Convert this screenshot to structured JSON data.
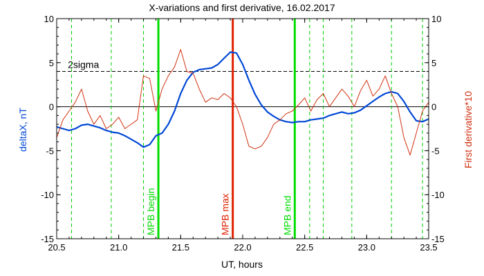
{
  "chart_data": {
    "type": "line",
    "title": "X-variations and first derivative, 16.02.2017",
    "xlabel": "UT, hours",
    "ylabel_left": "deltaX, nT",
    "ylabel_right": "First derivative*10",
    "xlim": [
      20.5,
      23.5
    ],
    "ylim_left": [
      -15,
      10
    ],
    "ylim_right": [
      -15,
      10
    ],
    "x_ticks": [
      20.5,
      21.0,
      21.5,
      22.0,
      22.5,
      23.0,
      23.5
    ],
    "x_tick_labels": [
      "20.5",
      "21.0",
      "21.5",
      "22.0",
      "22.5",
      "23.0",
      "23.5"
    ],
    "y_ticks": [
      10,
      5,
      0,
      -5,
      -10,
      -15
    ],
    "y_tick_labels": [
      "10",
      "5",
      "0",
      "-5",
      "-10",
      "-15"
    ],
    "grid": false,
    "threshold": {
      "label": "2sigma",
      "value": 4.0
    },
    "series": [
      {
        "key": "deltaX",
        "color": "#0047d6",
        "x": [
          20.5,
          20.55,
          20.6,
          20.65,
          20.7,
          20.75,
          20.8,
          20.85,
          20.9,
          20.95,
          21.0,
          21.05,
          21.1,
          21.15,
          21.2,
          21.25,
          21.3,
          21.35,
          21.4,
          21.45,
          21.5,
          21.55,
          21.6,
          21.65,
          21.7,
          21.75,
          21.8,
          21.85,
          21.9,
          21.95,
          22.0,
          22.05,
          22.1,
          22.15,
          22.2,
          22.25,
          22.3,
          22.35,
          22.4,
          22.45,
          22.5,
          22.55,
          22.6,
          22.65,
          22.7,
          22.75,
          22.8,
          22.85,
          22.9,
          22.95,
          23.0,
          23.05,
          23.1,
          23.15,
          23.2,
          23.25,
          23.3,
          23.35,
          23.4,
          23.45,
          23.5
        ],
        "y": [
          -2.3,
          -2.5,
          -2.7,
          -2.5,
          -2.1,
          -2.0,
          -2.2,
          -2.4,
          -2.7,
          -2.9,
          -3.0,
          -3.3,
          -3.7,
          -4.1,
          -4.6,
          -4.3,
          -3.3,
          -3.0,
          -2.0,
          -0.5,
          1.5,
          3.0,
          3.9,
          4.2,
          4.3,
          4.4,
          4.8,
          5.5,
          6.2,
          6.1,
          4.8,
          3.0,
          1.4,
          0.2,
          -0.6,
          -1.1,
          -1.5,
          -1.7,
          -1.8,
          -1.7,
          -1.7,
          -1.5,
          -1.4,
          -1.3,
          -1.0,
          -0.8,
          -0.6,
          -0.8,
          -0.7,
          -0.4,
          0.1,
          0.6,
          1.1,
          1.5,
          1.7,
          1.5,
          0.6,
          -0.6,
          -1.6,
          -1.7,
          -1.4
        ]
      },
      {
        "key": "derivative",
        "color": "#d03010",
        "x": [
          20.5,
          20.55,
          20.6,
          20.65,
          20.7,
          20.75,
          20.8,
          20.85,
          20.9,
          20.95,
          21.0,
          21.05,
          21.1,
          21.15,
          21.2,
          21.25,
          21.3,
          21.35,
          21.4,
          21.45,
          21.5,
          21.55,
          21.6,
          21.65,
          21.7,
          21.75,
          21.8,
          21.85,
          21.9,
          21.95,
          22.0,
          22.05,
          22.1,
          22.15,
          22.2,
          22.25,
          22.3,
          22.35,
          22.4,
          22.45,
          22.5,
          22.55,
          22.6,
          22.65,
          22.7,
          22.75,
          22.8,
          22.85,
          22.9,
          22.95,
          23.0,
          23.05,
          23.1,
          23.15,
          23.2,
          23.25,
          23.3,
          23.35,
          23.4,
          23.45,
          23.5
        ],
        "y": [
          -3.5,
          -1.5,
          -0.5,
          0.5,
          2.0,
          -0.5,
          -2.0,
          -1.0,
          -2.5,
          -2.0,
          -1.2,
          -2.5,
          -2.0,
          -1.5,
          3.5,
          3.2,
          -0.5,
          2.0,
          3.5,
          4.5,
          6.5,
          4.0,
          3.8,
          2.0,
          0.5,
          1.0,
          0.8,
          1.5,
          1.0,
          0.0,
          -2.0,
          -4.5,
          -4.8,
          -4.5,
          -3.5,
          -2.0,
          -1.5,
          -0.8,
          -0.5,
          0.2,
          1.0,
          -0.5,
          0.8,
          1.5,
          0.0,
          1.0,
          2.0,
          1.2,
          0.0,
          1.8,
          3.0,
          1.2,
          2.0,
          3.5,
          1.5,
          0.0,
          -3.5,
          -5.5,
          -3.0,
          -0.5,
          0.5
        ]
      }
    ],
    "vertical_markers": {
      "dashed_green": [
        20.62,
        20.94,
        21.2,
        22.54,
        22.65,
        22.88,
        23.2,
        23.45
      ],
      "solid": [
        {
          "x": 21.32,
          "label": "MPB begin",
          "color": "#00dd00"
        },
        {
          "x": 21.92,
          "label": "MPB max",
          "color": "#e02000"
        },
        {
          "x": 22.42,
          "label": "MPB end",
          "color": "#00dd00"
        }
      ]
    }
  }
}
